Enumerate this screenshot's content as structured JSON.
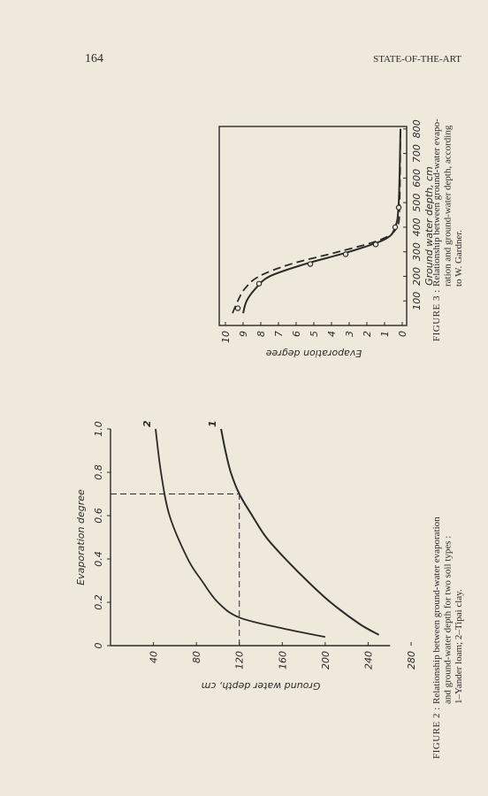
{
  "page_number": "164",
  "running_head": "STATE-OF-THE-ART",
  "chart_data": [
    {
      "type": "line",
      "label": "FIGURE 2 :",
      "title": [
        "Relationship between ground-water evaporation",
        "and ground-water depth for two soil types :",
        "1–Yander loam; 2–Tipai clay."
      ],
      "xlabel": "Evaporation degree",
      "ylabel": "Ground water depth, cm",
      "xlim": [
        0,
        1
      ],
      "xticks": [
        0,
        0.2,
        0.4,
        0.6,
        0.8,
        {
          "value": 1,
          "label": "1.0"
        }
      ],
      "ylim": [
        0,
        280
      ],
      "yticks": [
        40,
        80,
        120,
        160,
        200,
        240,
        280
      ],
      "y_inverted": true,
      "guides": {
        "x": 0.7,
        "y": 120
      },
      "series": [
        {
          "name": "1",
          "color": "#2a2a2a",
          "x": [
            0.05,
            0.1,
            0.2,
            0.3,
            0.4,
            0.5,
            0.6,
            0.7,
            0.8,
            0.9,
            1
          ],
          "values": [
            250,
            232,
            205,
            183,
            163,
            145,
            132,
            120,
            112,
            107,
            103
          ]
        },
        {
          "name": "2",
          "color": "#2a2a2a",
          "x": [
            0.04,
            0.08,
            0.13,
            0.2,
            0.3,
            0.4,
            0.6,
            0.8,
            1
          ],
          "values": [
            200,
            160,
            120,
            100,
            85,
            72,
            55,
            47,
            42
          ]
        }
      ]
    },
    {
      "type": "line",
      "label": "FIGURE 3 :",
      "title": [
        "Relationship between ground-water evapo-",
        "ration and ground-water depth, according",
        "to W. Gardner."
      ],
      "xlabel": "Ground water depth, cm",
      "ylabel": "Evaporation degree",
      "xlim": [
        0,
        810
      ],
      "xticks": [
        100,
        200,
        300,
        400,
        500,
        600,
        700,
        800
      ],
      "ylim": [
        0,
        10
      ],
      "yticks": [
        0,
        1,
        2,
        3,
        4,
        5,
        6,
        7,
        8,
        9,
        10
      ],
      "series": [
        {
          "color": "#2a2a2a",
          "dash": false,
          "x": [
            50,
            100,
            150,
            200,
            250,
            300,
            350,
            400,
            500,
            800
          ],
          "values": [
            9,
            8.8,
            8.3,
            7.5,
            5.5,
            3,
            1,
            0.4,
            0.2,
            0.1
          ]
        },
        {
          "color": "#2a2a2a",
          "dash": true,
          "x": [
            50,
            100,
            150,
            200,
            250,
            300,
            350,
            400,
            500,
            800
          ],
          "values": [
            9.6,
            9.3,
            8.9,
            8.1,
            6.3,
            3.6,
            1.2,
            0.3,
            0.15,
            0.1
          ]
        }
      ],
      "points": {
        "color": "#2a2a2a",
        "x": [
          70,
          170,
          250,
          290,
          330,
          400,
          480
        ],
        "values": [
          9.3,
          8.1,
          5.2,
          3.2,
          1.5,
          0.4,
          0.2
        ]
      }
    }
  ]
}
